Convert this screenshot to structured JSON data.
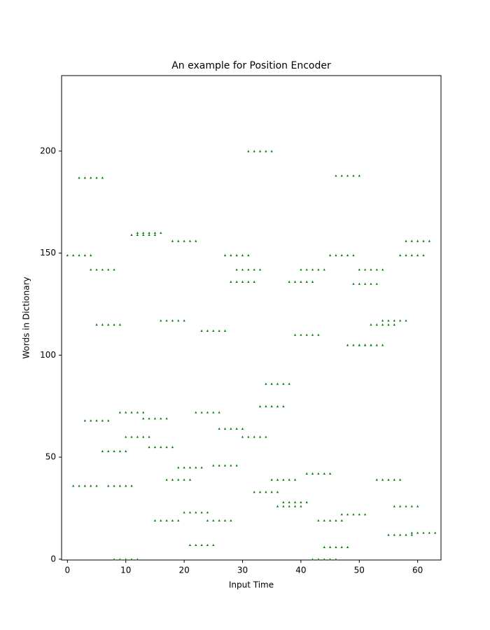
{
  "chart_data": {
    "type": "scatter",
    "title": "An example for Position Encoder",
    "x_label": "Input Time",
    "y_label": "Words in Dictionary",
    "color": "#008000",
    "marker": "triangle",
    "xlim": [
      -1,
      64
    ],
    "ylim": [
      -0.4,
      237
    ],
    "xticks": [
      0,
      10,
      20,
      30,
      40,
      50,
      60
    ],
    "yticks": [
      0,
      50,
      100,
      150,
      200
    ],
    "x": [
      0,
      1,
      2,
      3,
      4,
      2,
      3,
      4,
      5,
      6,
      4,
      5,
      6,
      7,
      8,
      5,
      6,
      7,
      8,
      9,
      3,
      4,
      5,
      6,
      7,
      6,
      7,
      8,
      9,
      10,
      1,
      2,
      3,
      4,
      5,
      7,
      8,
      9,
      10,
      11,
      8,
      9,
      10,
      11,
      12,
      9,
      10,
      11,
      12,
      13,
      10,
      11,
      12,
      13,
      14,
      11,
      12,
      13,
      14,
      15,
      12,
      13,
      14,
      15,
      16,
      13,
      14,
      15,
      16,
      17,
      14,
      15,
      16,
      17,
      18,
      15,
      16,
      17,
      18,
      19,
      16,
      17,
      18,
      19,
      20,
      17,
      18,
      19,
      20,
      21,
      18,
      19,
      20,
      21,
      22,
      19,
      20,
      21,
      22,
      23,
      20,
      21,
      22,
      23,
      24,
      21,
      22,
      23,
      24,
      25,
      22,
      23,
      24,
      25,
      26,
      23,
      24,
      25,
      26,
      27,
      24,
      25,
      26,
      27,
      28,
      25,
      26,
      27,
      28,
      29,
      26,
      27,
      28,
      29,
      30,
      27,
      28,
      29,
      30,
      31,
      28,
      29,
      30,
      31,
      32,
      29,
      30,
      31,
      32,
      33,
      30,
      31,
      32,
      33,
      34,
      31,
      32,
      33,
      34,
      35,
      32,
      33,
      34,
      35,
      36,
      33,
      34,
      35,
      36,
      37,
      34,
      35,
      36,
      37,
      38,
      35,
      36,
      37,
      38,
      39,
      36,
      37,
      38,
      39,
      40,
      37,
      38,
      39,
      40,
      41,
      38,
      39,
      40,
      41,
      42,
      39,
      40,
      41,
      42,
      43,
      40,
      41,
      42,
      43,
      44,
      41,
      42,
      43,
      44,
      45,
      42,
      43,
      44,
      45,
      46,
      43,
      44,
      45,
      46,
      47,
      44,
      45,
      46,
      47,
      48,
      45,
      46,
      47,
      48,
      49,
      46,
      47,
      48,
      49,
      50,
      47,
      48,
      49,
      50,
      51,
      48,
      49,
      50,
      51,
      52,
      50,
      51,
      52,
      53,
      54,
      49,
      50,
      51,
      52,
      53,
      50,
      51,
      52,
      53,
      54,
      52,
      53,
      54,
      55,
      56,
      53,
      54,
      55,
      56,
      57,
      54,
      55,
      56,
      57,
      58,
      55,
      56,
      57,
      58,
      59,
      56,
      57,
      58,
      59,
      60,
      57,
      58,
      59,
      60,
      61,
      58,
      59,
      60,
      61,
      62,
      59,
      60,
      61,
      62,
      63
    ],
    "values": [
      149,
      149,
      149,
      149,
      149,
      187,
      187,
      187,
      187,
      187,
      142,
      142,
      142,
      142,
      142,
      115,
      115,
      115,
      115,
      115,
      68,
      68,
      68,
      68,
      68,
      53,
      53,
      53,
      53,
      53,
      36,
      36,
      36,
      36,
      36,
      36,
      36,
      36,
      36,
      36,
      0,
      0,
      0,
      0,
      0,
      72,
      72,
      72,
      72,
      72,
      60,
      60,
      60,
      60,
      60,
      159,
      159,
      159,
      159,
      159,
      160,
      160,
      160,
      160,
      160,
      69,
      69,
      69,
      69,
      69,
      55,
      55,
      55,
      55,
      55,
      19,
      19,
      19,
      19,
      19,
      117,
      117,
      117,
      117,
      117,
      39,
      39,
      39,
      39,
      39,
      156,
      156,
      156,
      156,
      156,
      45,
      45,
      45,
      45,
      45,
      23,
      23,
      23,
      23,
      23,
      7,
      7,
      7,
      7,
      7,
      72,
      72,
      72,
      72,
      72,
      112,
      112,
      112,
      112,
      112,
      19,
      19,
      19,
      19,
      19,
      46,
      46,
      46,
      46,
      46,
      64,
      64,
      64,
      64,
      64,
      149,
      149,
      149,
      149,
      149,
      136,
      136,
      136,
      136,
      136,
      142,
      142,
      142,
      142,
      142,
      60,
      60,
      60,
      60,
      60,
      200,
      200,
      200,
      200,
      200,
      33,
      33,
      33,
      33,
      33,
      75,
      75,
      75,
      75,
      75,
      86,
      86,
      86,
      86,
      86,
      39,
      39,
      39,
      39,
      39,
      26,
      26,
      26,
      26,
      26,
      28,
      28,
      28,
      28,
      28,
      136,
      136,
      136,
      136,
      136,
      110,
      110,
      110,
      110,
      110,
      142,
      142,
      142,
      142,
      142,
      42,
      42,
      42,
      42,
      42,
      0,
      0,
      0,
      0,
      0,
      19,
      19,
      19,
      19,
      19,
      6,
      6,
      6,
      6,
      6,
      149,
      149,
      149,
      149,
      149,
      188,
      188,
      188,
      188,
      188,
      22,
      22,
      22,
      22,
      22,
      105,
      105,
      105,
      105,
      105,
      105,
      105,
      105,
      105,
      105,
      135,
      135,
      135,
      135,
      135,
      142,
      142,
      142,
      142,
      142,
      115,
      115,
      115,
      115,
      115,
      39,
      39,
      39,
      39,
      39,
      117,
      117,
      117,
      117,
      117,
      12,
      12,
      12,
      12,
      12,
      26,
      26,
      26,
      26,
      26,
      149,
      149,
      149,
      149,
      149,
      156,
      156,
      156,
      156,
      156,
      13,
      13,
      13,
      13,
      13
    ]
  }
}
